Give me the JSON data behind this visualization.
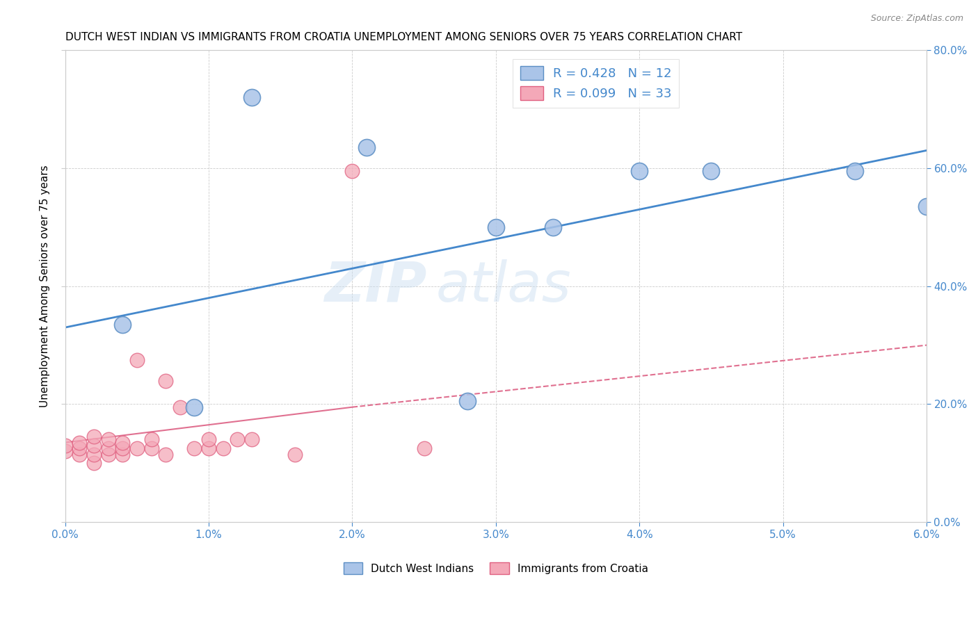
{
  "title": "DUTCH WEST INDIAN VS IMMIGRANTS FROM CROATIA UNEMPLOYMENT AMONG SENIORS OVER 75 YEARS CORRELATION CHART",
  "source": "Source: ZipAtlas.com",
  "xlabel_ticks": [
    "0.0%",
    "1.0%",
    "2.0%",
    "3.0%",
    "4.0%",
    "5.0%",
    "6.0%"
  ],
  "ylabel_ticks": [
    "0.0%",
    "20.0%",
    "40.0%",
    "60.0%",
    "80.0%"
  ],
  "ylabel_label": "Unemployment Among Seniors over 75 years",
  "xmin": 0.0,
  "xmax": 0.06,
  "ymin": 0.0,
  "ymax": 0.8,
  "blue_R": 0.428,
  "blue_N": 12,
  "pink_R": 0.099,
  "pink_N": 33,
  "blue_scatter_x": [
    0.004,
    0.009,
    0.013,
    0.021,
    0.03,
    0.034,
    0.04,
    0.045,
    0.055,
    0.06,
    0.028
  ],
  "blue_scatter_y": [
    0.335,
    0.195,
    0.72,
    0.635,
    0.5,
    0.5,
    0.595,
    0.595,
    0.595,
    0.535,
    0.205
  ],
  "pink_scatter_x": [
    0.0,
    0.0,
    0.001,
    0.001,
    0.001,
    0.002,
    0.002,
    0.002,
    0.002,
    0.003,
    0.003,
    0.003,
    0.004,
    0.004,
    0.004,
    0.005,
    0.005,
    0.006,
    0.006,
    0.007,
    0.007,
    0.008,
    0.009,
    0.01,
    0.01,
    0.011,
    0.012,
    0.013,
    0.016,
    0.02,
    0.025
  ],
  "pink_scatter_y": [
    0.12,
    0.13,
    0.115,
    0.125,
    0.135,
    0.1,
    0.115,
    0.13,
    0.145,
    0.115,
    0.125,
    0.14,
    0.115,
    0.125,
    0.135,
    0.275,
    0.125,
    0.125,
    0.14,
    0.24,
    0.115,
    0.195,
    0.125,
    0.125,
    0.14,
    0.125,
    0.14,
    0.14,
    0.115,
    0.595,
    0.125
  ],
  "blue_line_x": [
    0.0,
    0.06
  ],
  "blue_line_y": [
    0.33,
    0.63
  ],
  "pink_solid_line_x": [
    0.0,
    0.02
  ],
  "pink_solid_line_y": [
    0.135,
    0.195
  ],
  "pink_dashed_line_x": [
    0.02,
    0.06
  ],
  "pink_dashed_line_y": [
    0.195,
    0.3
  ],
  "watermark": "ZIPatlas",
  "blue_color": "#aac4e8",
  "pink_color": "#f4a8b8",
  "blue_edge_color": "#5b8ec4",
  "pink_edge_color": "#e06080",
  "blue_line_color": "#4488cc",
  "pink_line_color": "#e07090"
}
